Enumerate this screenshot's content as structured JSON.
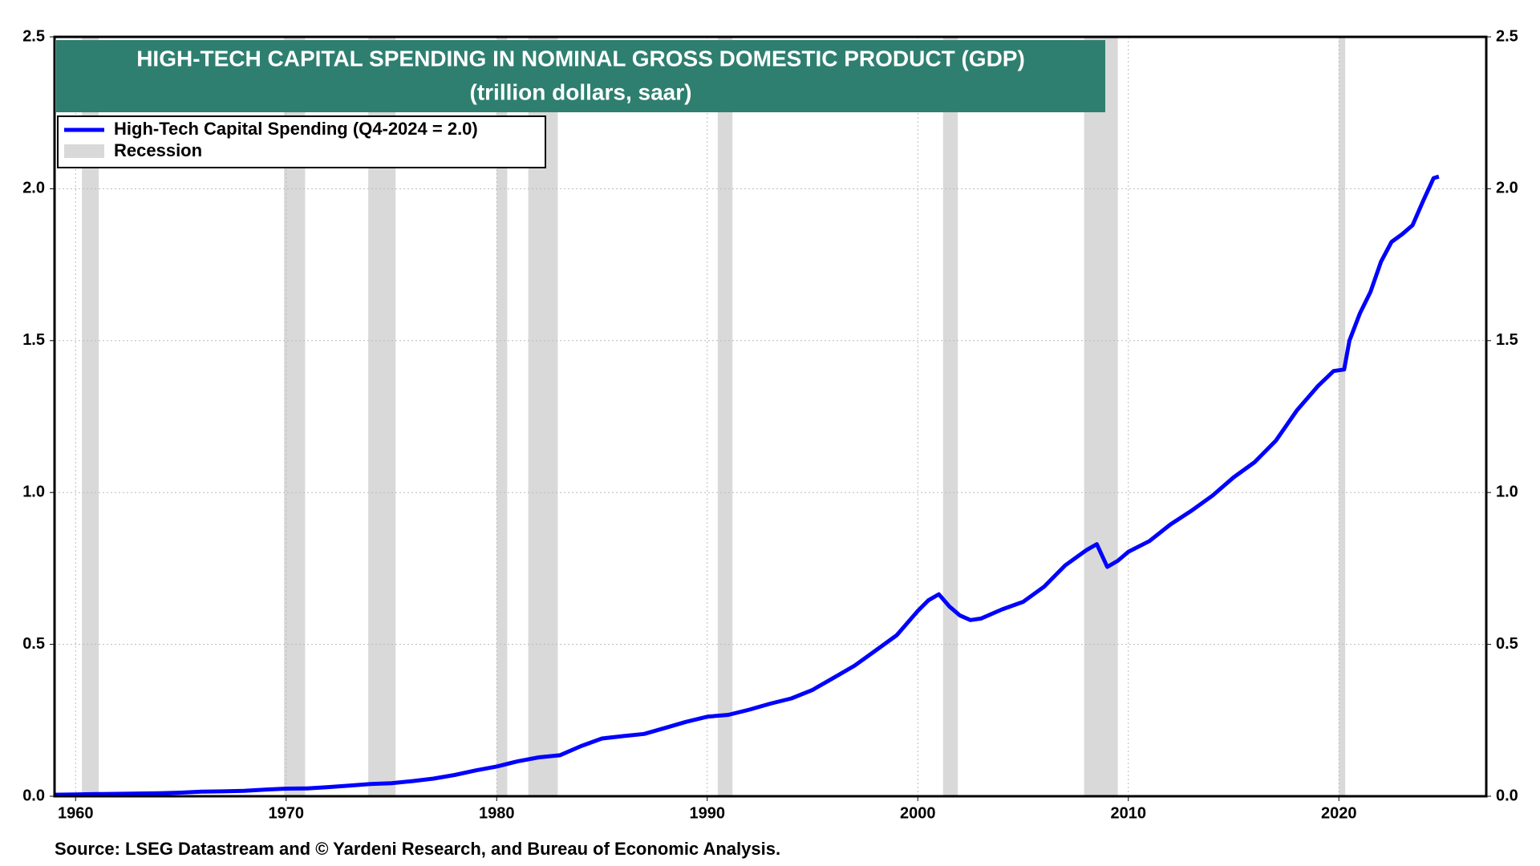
{
  "chart_data": {
    "type": "line",
    "title": "HIGH-TECH CAPITAL SPENDING IN NOMINAL GROSS DOMESTIC PRODUCT (GDP)",
    "subtitle": "(trillion dollars, saar)",
    "source": "Source: LSEG Datastream and © Yardeni Research, and Bureau of Economic Analysis.",
    "x": [
      1959,
      1960,
      1961,
      1962,
      1963,
      1964,
      1965,
      1966,
      1967,
      1968,
      1969,
      1970,
      1971,
      1972,
      1973,
      1974,
      1975,
      1976,
      1977,
      1978,
      1979,
      1980,
      1981,
      1982,
      1983,
      1984,
      1985,
      1986,
      1987,
      1988,
      1989,
      1990,
      1991,
      1992,
      1993,
      1994,
      1995,
      1996,
      1997,
      1998,
      1999,
      2000,
      2000.5,
      2001,
      2001.5,
      2002,
      2002.5,
      2003,
      2004,
      2005,
      2006,
      2007,
      2008,
      2008.5,
      2009,
      2009.5,
      2010,
      2011,
      2012,
      2013,
      2014,
      2015,
      2016,
      2017,
      2018,
      2019,
      2019.75,
      2020.25,
      2020.5,
      2021,
      2021.5,
      2022,
      2022.5,
      2023,
      2023.5,
      2024,
      2024.5,
      2024.75
    ],
    "series": [
      {
        "name": "High-Tech Capital Spending (Q4-2024 = 2.0)",
        "color": "#0000ff",
        "values": [
          0.005,
          0.006,
          0.007,
          0.008,
          0.009,
          0.01,
          0.012,
          0.015,
          0.016,
          0.018,
          0.022,
          0.025,
          0.026,
          0.03,
          0.035,
          0.04,
          0.043,
          0.05,
          0.058,
          0.07,
          0.085,
          0.098,
          0.115,
          0.128,
          0.135,
          0.165,
          0.19,
          0.198,
          0.205,
          0.225,
          0.245,
          0.262,
          0.268,
          0.285,
          0.305,
          0.322,
          0.35,
          0.39,
          0.43,
          0.48,
          0.53,
          0.61,
          0.645,
          0.665,
          0.625,
          0.595,
          0.58,
          0.585,
          0.615,
          0.64,
          0.69,
          0.76,
          0.81,
          0.83,
          0.755,
          0.775,
          0.805,
          0.84,
          0.895,
          0.94,
          0.99,
          1.05,
          1.1,
          1.17,
          1.27,
          1.35,
          1.4,
          1.405,
          1.5,
          1.59,
          1.66,
          1.76,
          1.825,
          1.85,
          1.88,
          1.96,
          2.035,
          2.04
        ]
      }
    ],
    "recession_label": "Recession",
    "recession_color": "#d9d9d9",
    "recessions": [
      [
        1960.3,
        1961.1
      ],
      [
        1969.9,
        1970.9
      ],
      [
        1973.9,
        1975.2
      ],
      [
        1980.0,
        1980.5
      ],
      [
        1981.5,
        1982.9
      ],
      [
        1990.5,
        1991.2
      ],
      [
        2001.2,
        2001.9
      ],
      [
        2007.9,
        2009.5
      ],
      [
        2020.0,
        2020.3
      ]
    ],
    "xlim": [
      1959,
      2027
    ],
    "xticks": [
      1960,
      1970,
      1980,
      1990,
      2000,
      2010,
      2020
    ],
    "ylim": [
      0,
      2.5
    ],
    "yticks": [
      {
        "value": 0,
        "label": "0.0"
      },
      {
        "value": 0.5,
        "label": "0.5"
      },
      {
        "value": 1,
        "label": "1.0"
      },
      {
        "value": 1.5,
        "label": "1.5"
      },
      {
        "value": 2,
        "label": "2.0"
      },
      {
        "value": 2.5,
        "label": "2.5"
      }
    ],
    "grid": true
  }
}
